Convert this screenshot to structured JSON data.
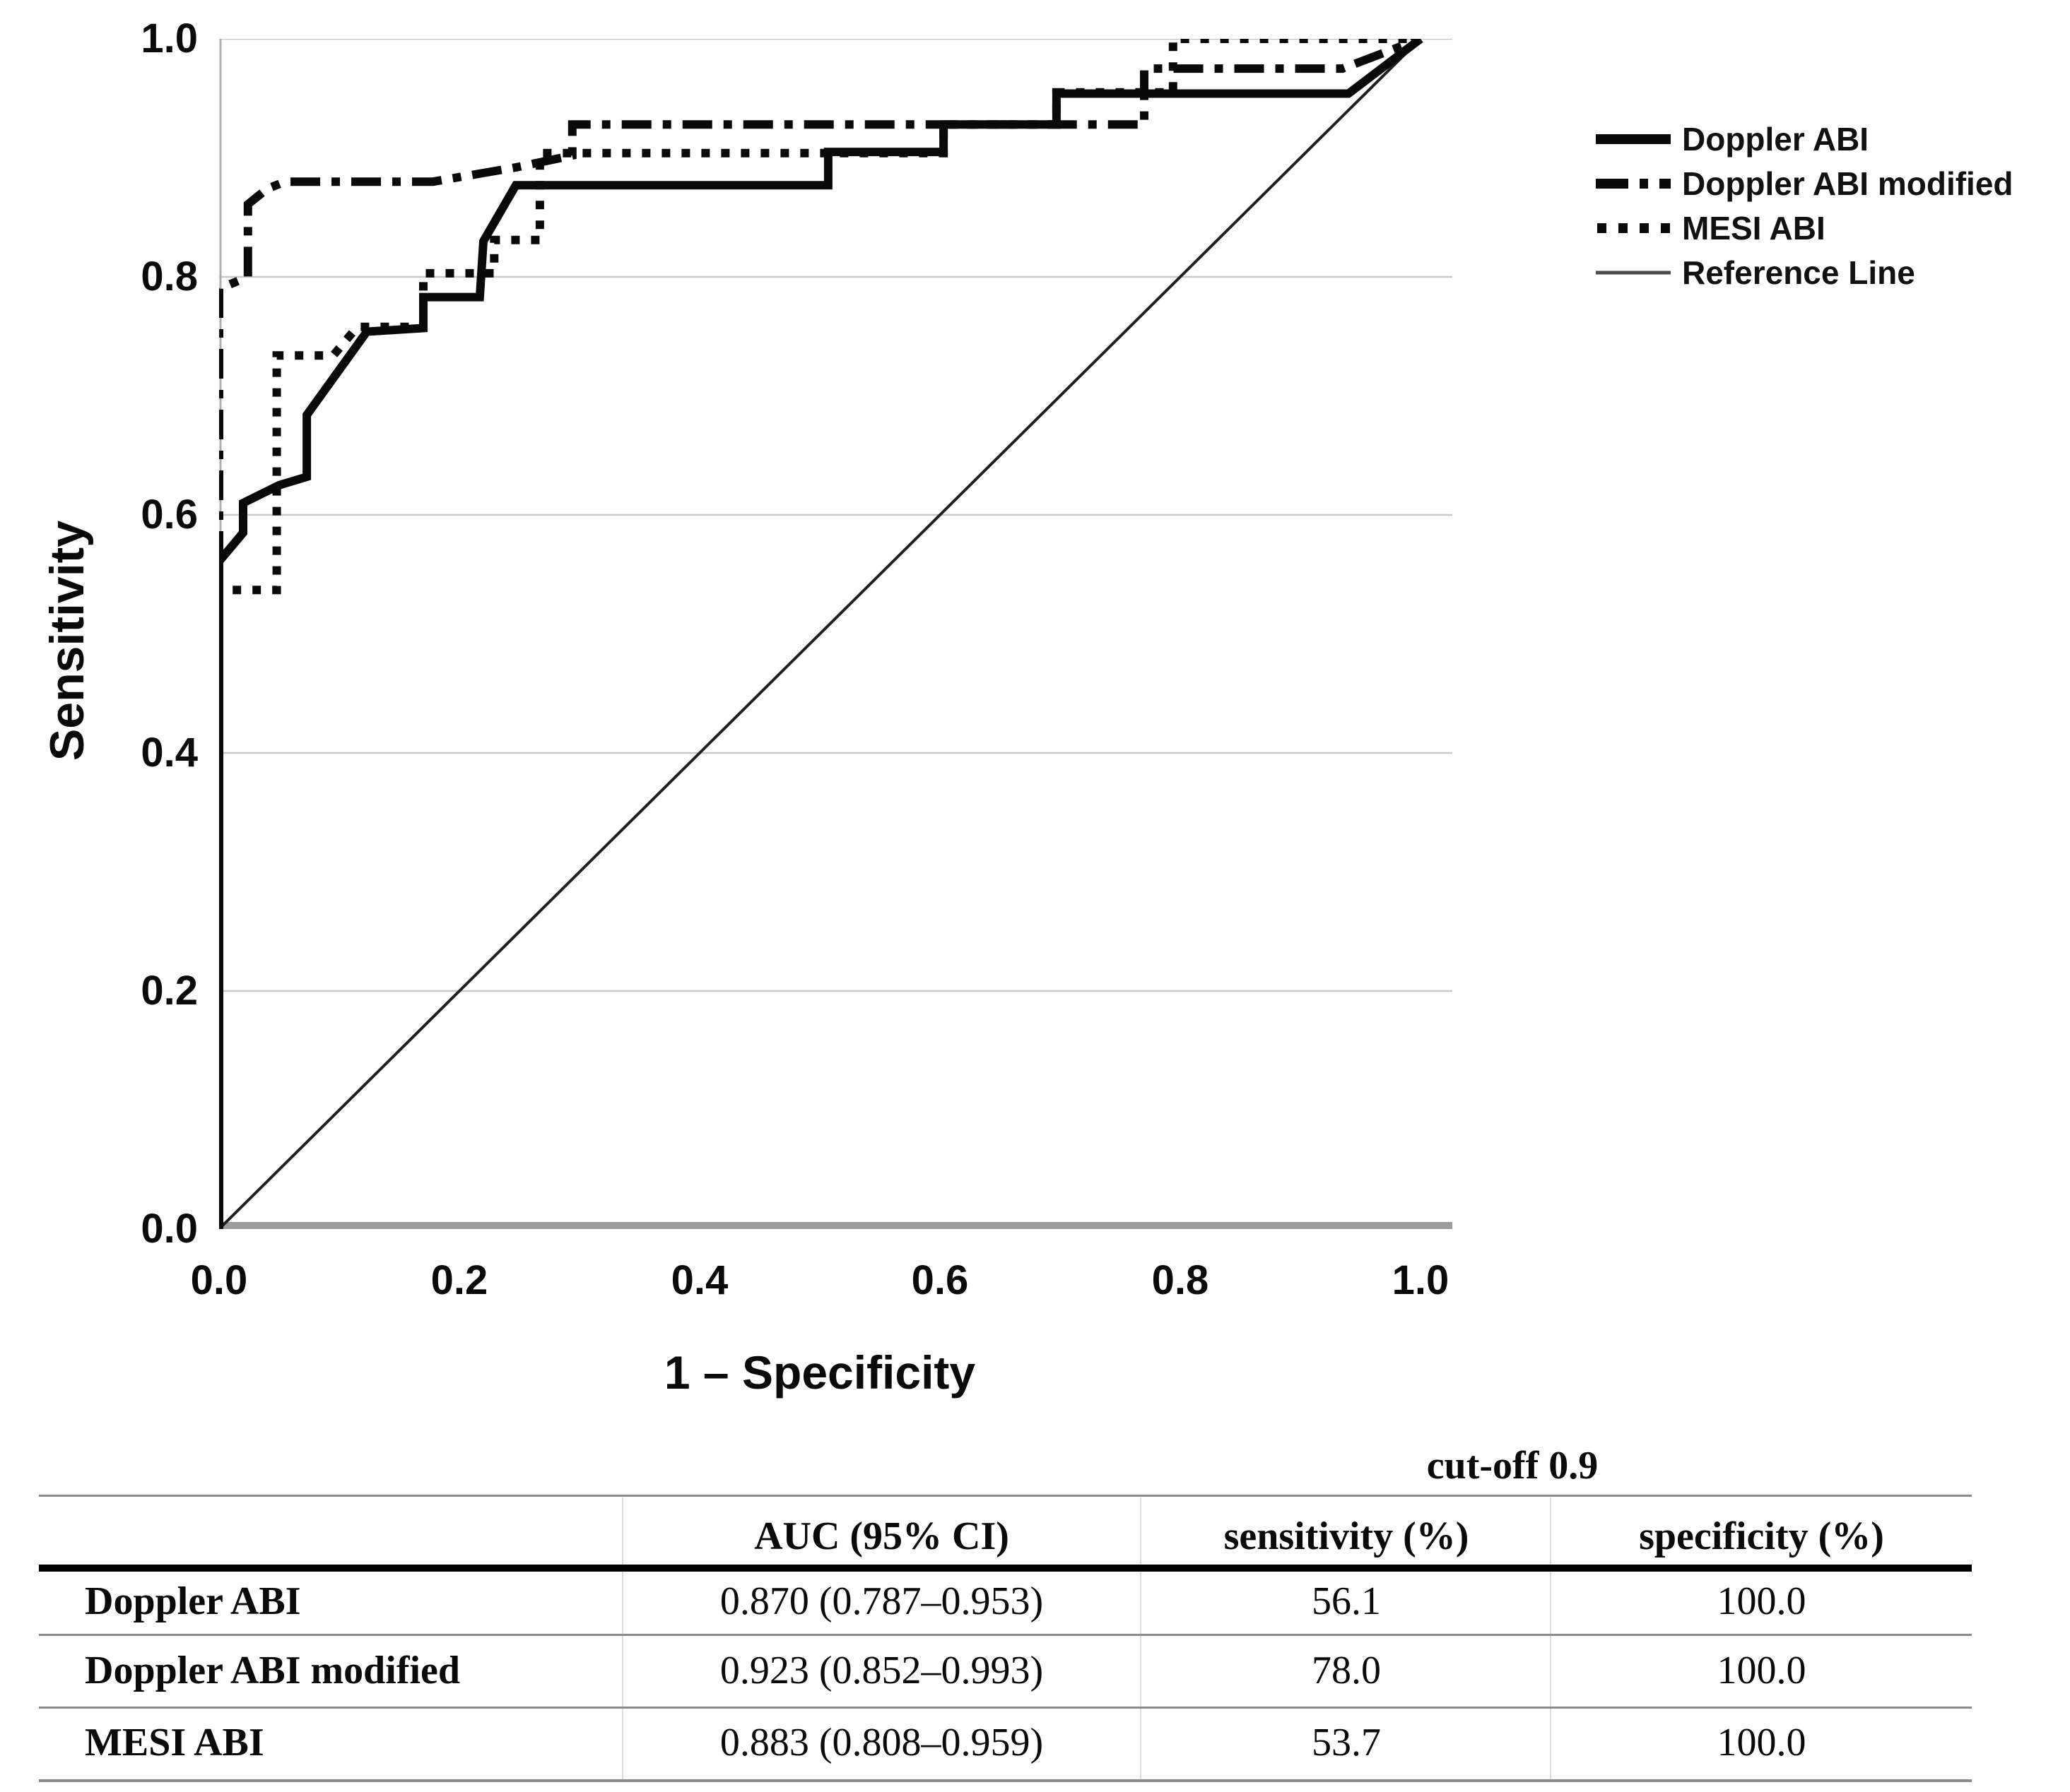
{
  "figure": {
    "y_axis": {
      "title": "Sensitivity",
      "ticks": [
        "1.0",
        "0.8",
        "0.6",
        "0.4",
        "0.2",
        "0.0"
      ]
    },
    "x_axis": {
      "title": "1 – Specificity",
      "ticks": [
        "0.0",
        "0.2",
        "0.4",
        "0.6",
        "0.8",
        "1.0"
      ]
    },
    "legend": {
      "items": [
        {
          "label": "Doppler ABI",
          "style": "solid"
        },
        {
          "label": "Doppler ABI modified",
          "style": "dashdot"
        },
        {
          "label": "MESI ABI",
          "style": "dotted"
        },
        {
          "label": "Reference Line",
          "style": "reference"
        }
      ]
    },
    "colors": {
      "curve": "#0a0a0a",
      "grid": "#c8c8c8",
      "axis": "#9c9c9c"
    }
  },
  "chart_data": {
    "type": "line",
    "subtype": "roc-step-curves",
    "title": "",
    "xlabel": "1 – Specificity",
    "ylabel": "Sensitivity",
    "xlim": [
      0,
      1
    ],
    "ylim": [
      0,
      1
    ],
    "x_ticks": [
      0.0,
      0.2,
      0.4,
      0.6,
      0.8,
      1.0
    ],
    "y_ticks": [
      0.0,
      0.2,
      0.4,
      0.6,
      0.8,
      1.0
    ],
    "grid": "horizontal-only",
    "legend_position": "top-right-outside",
    "y_gridlines": [
      0.2,
      0.4,
      0.6,
      0.8,
      1.0
    ],
    "series": [
      {
        "name": "Doppler ABI",
        "style": "solid",
        "points": [
          [
            0,
            0
          ],
          [
            0,
            0.561
          ],
          [
            0.02,
            0.585
          ],
          [
            0.02,
            0.61
          ],
          [
            0.05,
            0.625
          ],
          [
            0.073,
            0.632
          ],
          [
            0.073,
            0.684
          ],
          [
            0.123,
            0.754
          ],
          [
            0.17,
            0.757
          ],
          [
            0.17,
            0.783
          ],
          [
            0.217,
            0.783
          ],
          [
            0.22,
            0.83
          ],
          [
            0.247,
            0.877
          ],
          [
            0.507,
            0.877
          ],
          [
            0.507,
            0.905
          ],
          [
            0.603,
            0.905
          ],
          [
            0.603,
            0.928
          ],
          [
            0.697,
            0.928
          ],
          [
            0.697,
            0.954
          ],
          [
            0.94,
            0.954
          ],
          [
            1,
            1
          ]
        ]
      },
      {
        "name": "Doppler ABI modified",
        "style": "dashdot",
        "points": [
          [
            0,
            0
          ],
          [
            0,
            0.79
          ],
          [
            0.024,
            0.8
          ],
          [
            0.024,
            0.861
          ],
          [
            0.04,
            0.874
          ],
          [
            0.055,
            0.88
          ],
          [
            0.178,
            0.88
          ],
          [
            0.247,
            0.892
          ],
          [
            0.294,
            0.902
          ],
          [
            0.294,
            0.928
          ],
          [
            0.77,
            0.928
          ],
          [
            0.77,
            0.975
          ],
          [
            0.935,
            0.975
          ],
          [
            1,
            1
          ]
        ]
      },
      {
        "name": "MESI ABI",
        "style": "dotted",
        "points": [
          [
            0,
            0
          ],
          [
            0,
            0.537
          ],
          [
            0.048,
            0.537
          ],
          [
            0.048,
            0.734
          ],
          [
            0.095,
            0.734
          ],
          [
            0.115,
            0.758
          ],
          [
            0.17,
            0.758
          ],
          [
            0.17,
            0.803
          ],
          [
            0.229,
            0.803
          ],
          [
            0.229,
            0.831
          ],
          [
            0.267,
            0.831
          ],
          [
            0.267,
            0.904
          ],
          [
            0.603,
            0.904
          ],
          [
            0.603,
            0.928
          ],
          [
            0.697,
            0.928
          ],
          [
            0.697,
            0.955
          ],
          [
            0.794,
            0.955
          ],
          [
            0.794,
            1
          ],
          [
            1,
            1
          ]
        ]
      },
      {
        "name": "Reference Line",
        "style": "reference",
        "points": [
          [
            0,
            0
          ],
          [
            1,
            1
          ]
        ]
      }
    ]
  },
  "table": {
    "group_header": "cut-off 0.9",
    "columns": [
      "",
      "AUC (95% CI)",
      "sensitivity (%)",
      "specificity (%)"
    ],
    "rows": [
      {
        "label": "Doppler ABI",
        "auc": "0.870 (0.787–0.953)",
        "sensitivity": "56.1",
        "specificity": "100.0"
      },
      {
        "label": "Doppler ABI modified",
        "auc": "0.923 (0.852–0.993)",
        "sensitivity": "78.0",
        "specificity": "100.0"
      },
      {
        "label": "MESI ABI",
        "auc": "0.883 (0.808–0.959)",
        "sensitivity": "53.7",
        "specificity": "100.0"
      }
    ]
  }
}
